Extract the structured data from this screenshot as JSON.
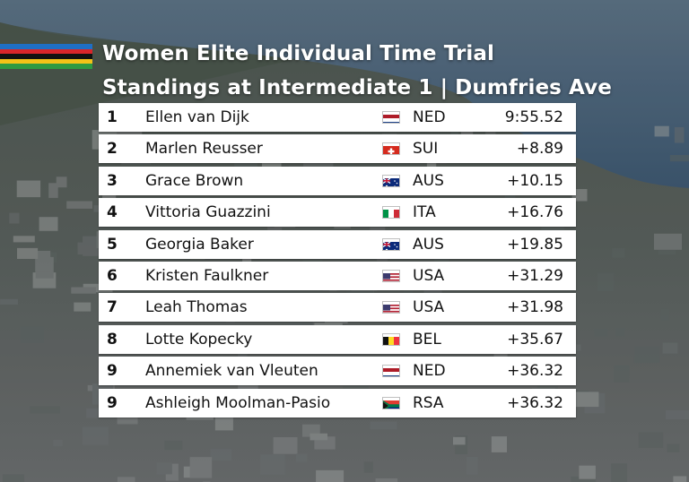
{
  "header": {
    "stripe_colors": [
      "#1f6fc5",
      "#d8252a",
      "#111111",
      "#f2c318",
      "#2e9a42"
    ],
    "title_line1": "Women Elite Individual Time Trial",
    "title_line2": "Standings at Intermediate 1 | Dumfries Ave"
  },
  "standings": [
    {
      "pos": "1",
      "name": "Ellen van Dijk",
      "country": "NED",
      "time": "9:55.52",
      "flag": "ned-flag-icon"
    },
    {
      "pos": "2",
      "name": "Marlen Reusser",
      "country": "SUI",
      "time": "+8.89",
      "flag": "sui-flag-icon"
    },
    {
      "pos": "3",
      "name": "Grace Brown",
      "country": "AUS",
      "time": "+10.15",
      "flag": "aus-flag-icon"
    },
    {
      "pos": "4",
      "name": "Vittoria Guazzini",
      "country": "ITA",
      "time": "+16.76",
      "flag": "ita-flag-icon"
    },
    {
      "pos": "5",
      "name": "Georgia Baker",
      "country": "AUS",
      "time": "+19.85",
      "flag": "aus-flag-icon"
    },
    {
      "pos": "6",
      "name": "Kristen Faulkner",
      "country": "USA",
      "time": "+31.29",
      "flag": "usa-flag-icon"
    },
    {
      "pos": "7",
      "name": "Leah Thomas",
      "country": "USA",
      "time": "+31.98",
      "flag": "usa-flag-icon"
    },
    {
      "pos": "8",
      "name": "Lotte Kopecky",
      "country": "BEL",
      "time": "+35.67",
      "flag": "bel-flag-icon"
    },
    {
      "pos": "9",
      "name": "Annemiek van Vleuten",
      "country": "NED",
      "time": "+36.32",
      "flag": "ned-flag-icon"
    },
    {
      "pos": "9",
      "name": "Ashleigh Moolman-Pasio",
      "country": "RSA",
      "time": "+36.32",
      "flag": "rsa-flag-icon"
    }
  ]
}
